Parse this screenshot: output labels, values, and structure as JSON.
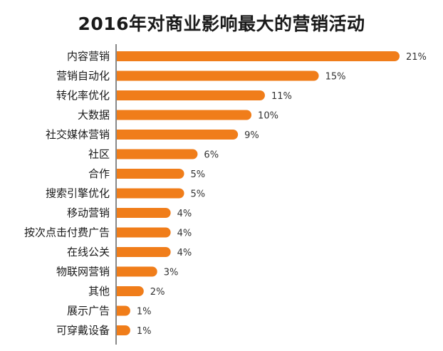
{
  "chart_data": {
    "type": "bar",
    "orientation": "horizontal",
    "title": "2016年对商业影响最大的营销活动",
    "xlabel": "",
    "ylabel": "",
    "categories": [
      "内容营销",
      "营销自动化",
      "转化率优化",
      "大数据",
      "社交媒体营销",
      "社区",
      "合作",
      "搜索引擎优化",
      "移动营销",
      "按次点击付费广告",
      "在线公关",
      "物联网营销",
      "其他",
      "展示广告",
      "可穿戴设备"
    ],
    "values": [
      21,
      15,
      11,
      10,
      9,
      6,
      5,
      5,
      4,
      4,
      4,
      3,
      2,
      1,
      1
    ],
    "value_labels": [
      "21%",
      "15%",
      "11%",
      "10%",
      "9%",
      "6%",
      "5%",
      "5%",
      "4%",
      "4%",
      "4%",
      "3%",
      "2%",
      "1%",
      "1%"
    ],
    "xlim": [
      0,
      21
    ],
    "bar_color": "#f07d1a",
    "grid": false,
    "legend": "none"
  }
}
